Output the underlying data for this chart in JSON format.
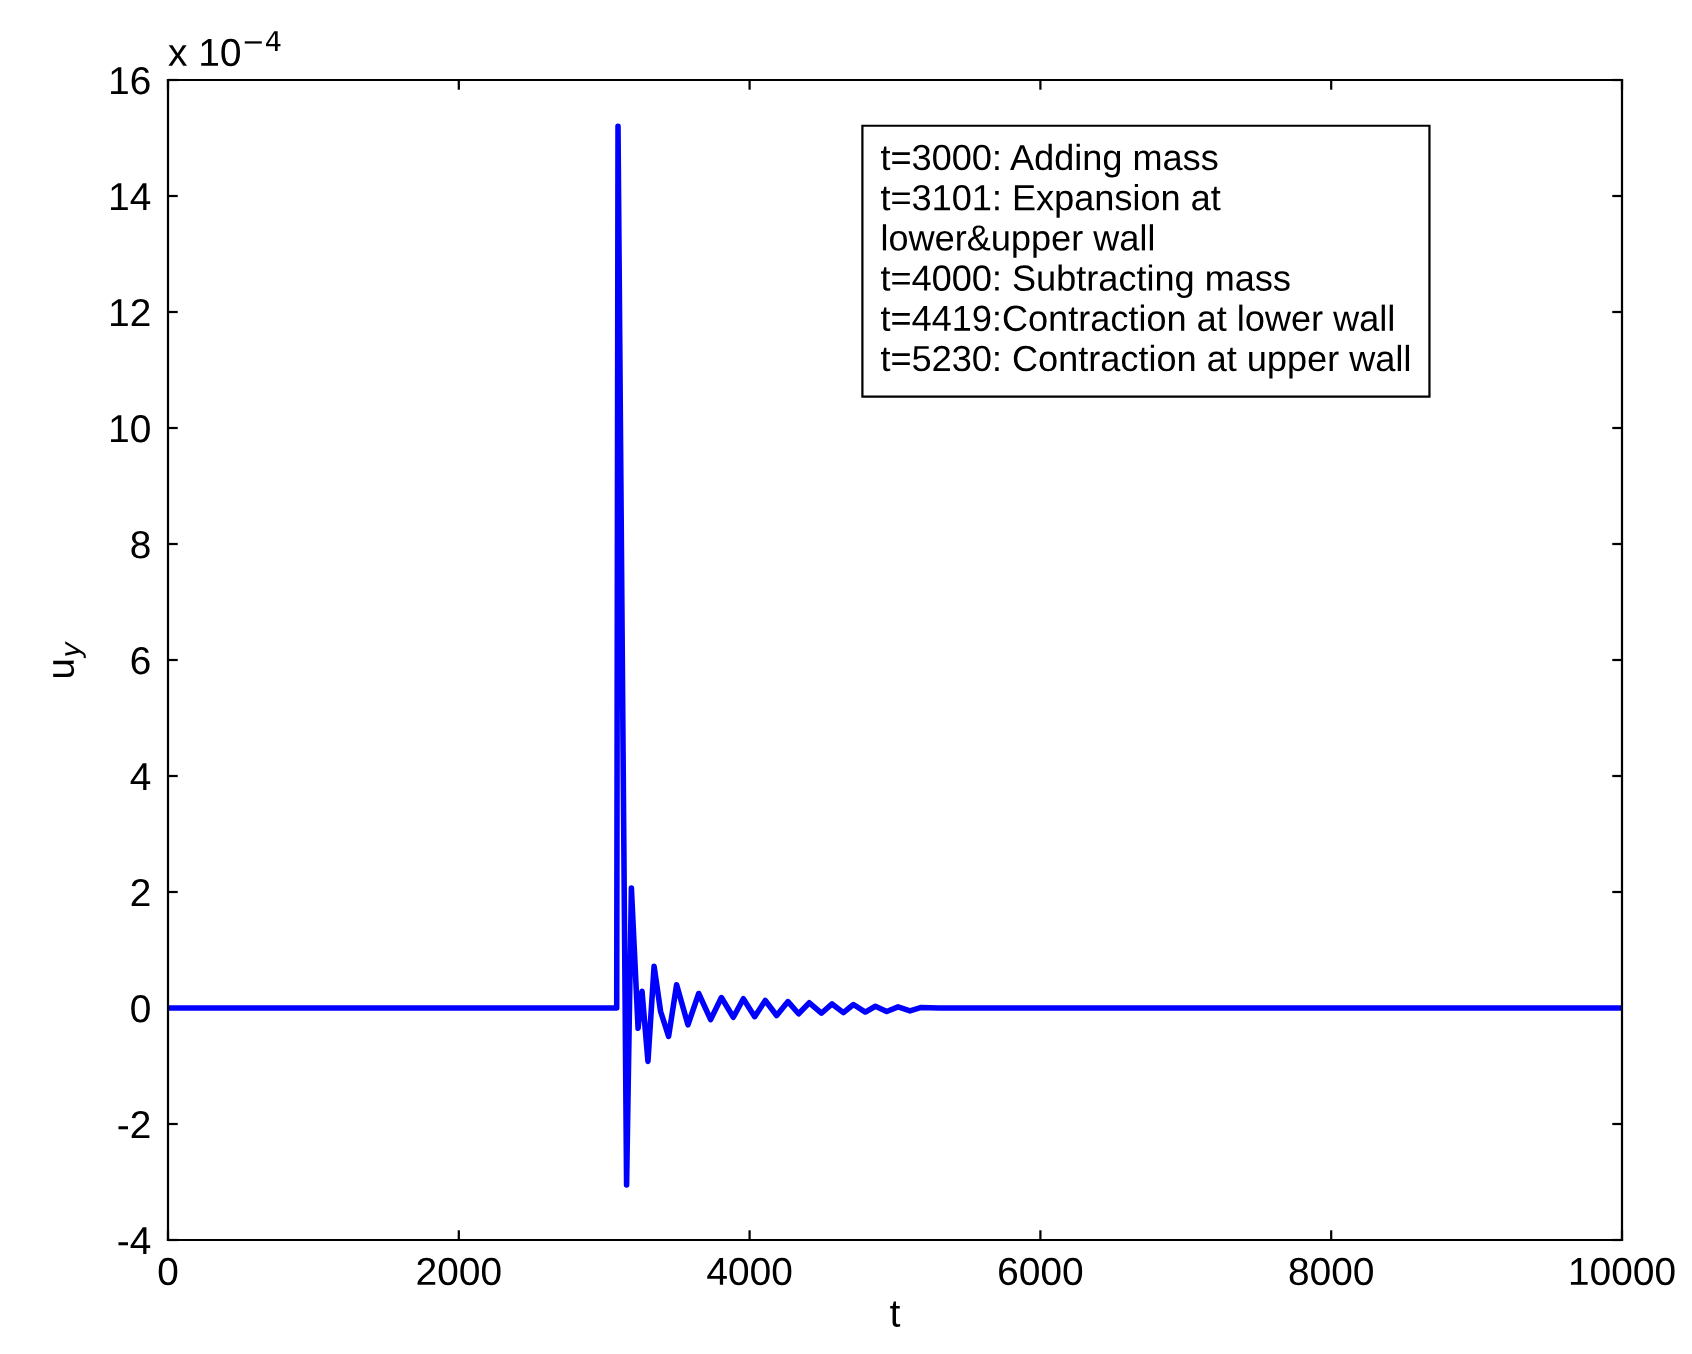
{
  "chart_data": {
    "type": "line",
    "xlabel": "t",
    "ylabel": "u$_{y}$",
    "x": [
      0,
      3086,
      3095,
      3154,
      3187,
      3233,
      3260,
      3301,
      3343,
      3388,
      3443,
      3498,
      3576,
      3650,
      3732,
      3806,
      3888,
      3957,
      4035,
      4108,
      4186,
      4264,
      4337,
      4411,
      4494,
      4567,
      4645,
      4714,
      4796,
      4865,
      4943,
      5021,
      5103,
      5181,
      5300,
      10000
    ],
    "series": [
      {
        "color": "#0000ff",
        "values": [
          0,
          0,
          15.2,
          -3.05,
          2.07,
          -0.35,
          0.29,
          -0.92,
          0.72,
          -0.06,
          -0.49,
          0.4,
          -0.29,
          0.25,
          -0.2,
          0.18,
          -0.16,
          0.16,
          -0.15,
          0.13,
          -0.13,
          0.11,
          -0.1,
          0.09,
          -0.09,
          0.07,
          -0.08,
          0.06,
          -0.07,
          0.03,
          -0.06,
          0.02,
          -0.05,
          0.01,
          0,
          0
        ]
      }
    ],
    "xlim": [
      0,
      10000
    ],
    "xticks": [
      0,
      2000,
      4000,
      6000,
      8000,
      10000
    ],
    "ylim": [
      -4,
      16
    ],
    "yticks": [
      -4,
      -2,
      0,
      2,
      4,
      6,
      8,
      10,
      12,
      14,
      16
    ],
    "annotations": [
      "x 10$^{−4}$",
      "t=3000: Adding mass\nt=3101: Expansion at\nlower&upper wall\nt=4000: Subtracting mass\nt=4419:Contraction at lower wall\nt=5230: Contraction at upper wall"
    ],
    "grid": false,
    "legend": false,
    "marker": "none",
    "line_style": "solid"
  }
}
